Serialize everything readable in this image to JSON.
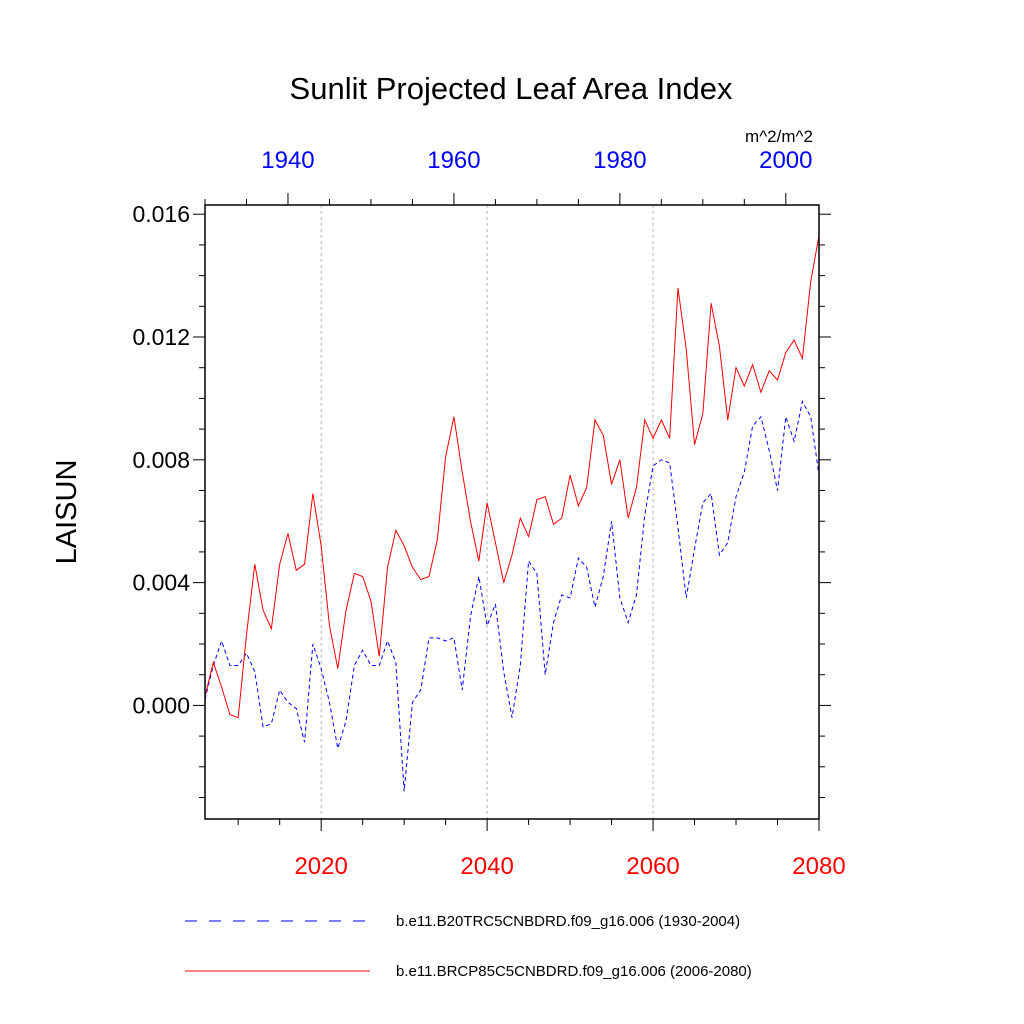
{
  "chart_data": {
    "type": "line",
    "title": "Sunlit Projected Leaf Area Index",
    "ylabel": "LAISUN",
    "units": "m^2/m^2",
    "ylim": [
      -0.0037,
      0.0163
    ],
    "y_ticks": [
      0.0,
      0.004,
      0.008,
      0.012,
      0.016
    ],
    "y_tick_labels": [
      "0.000",
      "0.004",
      "0.008",
      "0.012",
      "0.016"
    ],
    "y_minor_step": 0.001,
    "bottom_axis": {
      "range": [
        2006,
        2080
      ],
      "ticks": [
        2020,
        2040,
        2060,
        2080
      ],
      "tick_labels": [
        "2020",
        "2040",
        "2060",
        "2080"
      ],
      "minor_step": 5,
      "color": "#ff0000"
    },
    "top_axis": {
      "range": [
        1930,
        2004
      ],
      "ticks": [
        1940,
        1960,
        1980,
        2000
      ],
      "tick_labels": [
        "1940",
        "1960",
        "1980",
        "2000"
      ],
      "minor_step": 5,
      "color": "#0000ff"
    },
    "gridlines_x": [
      2020,
      2040,
      2060
    ],
    "series": [
      {
        "name": "b.e11.B20TRC5CNBDRD.f09_g16.006 (1930-2004)",
        "axis": "top",
        "color": "#0000ff",
        "dash": "dashed",
        "x_start": 1930,
        "values": [
          0.0002,
          0.0013,
          0.0021,
          0.0013,
          0.0013,
          0.0017,
          0.0011,
          -0.0007,
          -0.0006,
          0.0005,
          0.0001,
          -0.0001,
          -0.0012,
          0.002,
          0.0012,
          0.0001,
          -0.0014,
          -0.0005,
          0.0013,
          0.0018,
          0.0013,
          0.0013,
          0.0021,
          0.0014,
          -0.0028,
          0.0001,
          0.0005,
          0.0022,
          0.0022,
          0.0021,
          0.0022,
          0.0005,
          0.0029,
          0.0042,
          0.0026,
          0.0033,
          0.0011,
          -0.0004,
          0.0013,
          0.0047,
          0.0043,
          0.001,
          0.0027,
          0.0036,
          0.0035,
          0.0048,
          0.0045,
          0.0032,
          0.0042,
          0.006,
          0.0035,
          0.0027,
          0.0036,
          0.0062,
          0.0078,
          0.008,
          0.0079,
          0.0058,
          0.0035,
          0.0051,
          0.0066,
          0.0069,
          0.0049,
          0.0053,
          0.0068,
          0.0076,
          0.0091,
          0.0094,
          0.0083,
          0.007,
          0.0094,
          0.0086,
          0.0099,
          0.0094,
          0.0075
        ]
      },
      {
        "name": "b.e11.BRCP85C5CNBDRD.f09_g16.006 (2006-2080)",
        "axis": "bottom",
        "color": "#ff0000",
        "dash": "solid",
        "x_start": 2006,
        "values": [
          0.0003,
          0.0014,
          0.0006,
          -0.0003,
          -0.0004,
          0.0023,
          0.0046,
          0.0031,
          0.0025,
          0.0046,
          0.0056,
          0.0044,
          0.0046,
          0.0069,
          0.0052,
          0.0026,
          0.0012,
          0.0031,
          0.0043,
          0.0042,
          0.0034,
          0.0016,
          0.0045,
          0.0057,
          0.0052,
          0.0045,
          0.0041,
          0.0042,
          0.0054,
          0.0081,
          0.0094,
          0.0076,
          0.006,
          0.0047,
          0.0066,
          0.0053,
          0.004,
          0.0049,
          0.0061,
          0.0055,
          0.0067,
          0.0068,
          0.0059,
          0.0061,
          0.0075,
          0.0065,
          0.0071,
          0.0093,
          0.0088,
          0.0072,
          0.008,
          0.0061,
          0.0071,
          0.0093,
          0.0087,
          0.0093,
          0.0087,
          0.0136,
          0.0116,
          0.0085,
          0.0095,
          0.0131,
          0.0117,
          0.0093,
          0.011,
          0.0104,
          0.0111,
          0.0102,
          0.0109,
          0.0106,
          0.0115,
          0.0119,
          0.0113,
          0.0138,
          0.0153
        ]
      }
    ],
    "legend": [
      {
        "label": "b.e11.B20TRC5CNBDRD.f09_g16.006 (1930-2004)",
        "color": "#0000ff",
        "dash": "dashed"
      },
      {
        "label": "b.e11.BRCP85C5CNBDRD.f09_g16.006 (2006-2080)",
        "color": "#ff0000",
        "dash": "solid"
      }
    ]
  }
}
